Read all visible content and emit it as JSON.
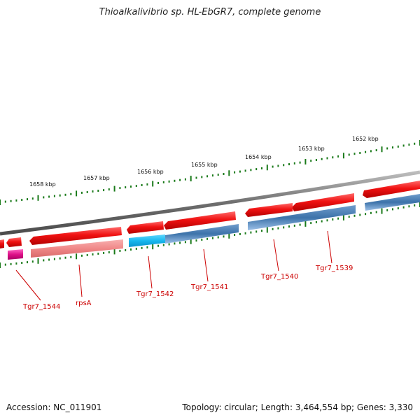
{
  "title": "Thioalkalivibrio sp. HL-EbGR7, complete genome",
  "footer": {
    "accession": "Accession: NC_011901",
    "summary": "Topology: circular; Length: 3,464,554 bp; Genes: 3,330"
  },
  "scale_labels": [
    "1652 kbp",
    "1653 kbp",
    "1654 kbp",
    "1655 kbp",
    "1656 kbp",
    "1657 kbp",
    "1658 kbp"
  ],
  "gene_labels": [
    "Tgr7_1539",
    "Tgr7_1540",
    "Tgr7_1541",
    "Tgr7_1542",
    "rpsA",
    "Tgr7_1544"
  ],
  "colors": {
    "backbone": "#7a7a7a",
    "forward_cds": "#ee1111",
    "reverse_cds": "#3d73aa",
    "rpsA": "#f08888",
    "highlight": "#18b8ee",
    "small_gene": "#dd1188",
    "tick": "#1a7a1a",
    "label": "#cc0000"
  }
}
